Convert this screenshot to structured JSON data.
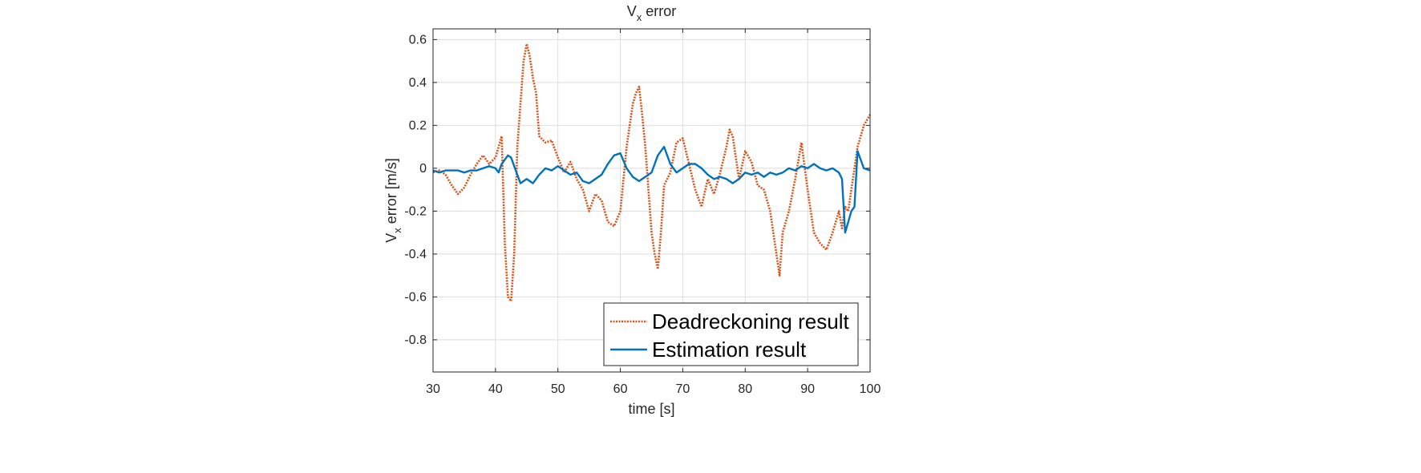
{
  "chart_data": {
    "type": "line",
    "title": {
      "main": "V",
      "sub": "x",
      "rest": " error"
    },
    "xlabel": "time [s]",
    "ylabel": {
      "main": "V",
      "sub": "x",
      "rest": " error [m/s]"
    },
    "xlim": [
      30,
      100
    ],
    "ylim": [
      -0.95,
      0.65
    ],
    "xticks": [
      30,
      40,
      50,
      60,
      70,
      80,
      90,
      100
    ],
    "xtick_labels": [
      "30",
      "40",
      "50",
      "60",
      "70",
      "80",
      "90",
      "100"
    ],
    "yticks": [
      -0.8,
      -0.6,
      -0.4,
      -0.2,
      0,
      0.2,
      0.4,
      0.6
    ],
    "ytick_labels": [
      "-0.8",
      "-0.6",
      "-0.4",
      "-0.2",
      "0",
      "0.2",
      "0.4",
      "0.6"
    ],
    "grid": true,
    "legend_position": "bottom-right",
    "series": [
      {
        "name": "Deadreckoning result",
        "color": "#D95319",
        "style": "dotted",
        "x": [
          30,
          31,
          32,
          33,
          34,
          35,
          36,
          37,
          38,
          39,
          40,
          41,
          41.5,
          42,
          42.5,
          43,
          43.5,
          44,
          44.5,
          45,
          45.5,
          46,
          46.5,
          47,
          48,
          49,
          50,
          51,
          52,
          53,
          54,
          55,
          56,
          57,
          58,
          59,
          60,
          61,
          62,
          62.5,
          63,
          63.5,
          64,
          65,
          65.5,
          66,
          66.5,
          67,
          68,
          69,
          70,
          71,
          72,
          73,
          74,
          75,
          76,
          77,
          77.5,
          78,
          78.5,
          79,
          80,
          81,
          82,
          83,
          84,
          85,
          85.5,
          86,
          87,
          88,
          89,
          90,
          91,
          92,
          93,
          94,
          95,
          95.5,
          96,
          96.5,
          97,
          98,
          99,
          100
        ],
        "y": [
          -0.02,
          -0.01,
          -0.03,
          -0.08,
          -0.12,
          -0.09,
          -0.03,
          0.02,
          0.06,
          0.02,
          0.05,
          0.15,
          -0.35,
          -0.6,
          -0.62,
          -0.4,
          0.1,
          0.3,
          0.5,
          0.58,
          0.52,
          0.42,
          0.35,
          0.15,
          0.12,
          0.13,
          0.05,
          -0.02,
          0.03,
          -0.05,
          -0.1,
          -0.2,
          -0.12,
          -0.15,
          -0.25,
          -0.27,
          -0.2,
          0.1,
          0.3,
          0.35,
          0.38,
          0.25,
          0.1,
          -0.3,
          -0.4,
          -0.47,
          -0.3,
          -0.08,
          -0.02,
          0.12,
          0.14,
          0.02,
          -0.1,
          -0.18,
          -0.05,
          -0.12,
          -0.02,
          0.1,
          0.18,
          0.15,
          0.05,
          -0.05,
          0.08,
          0.03,
          -0.08,
          -0.1,
          -0.2,
          -0.4,
          -0.5,
          -0.3,
          -0.2,
          -0.05,
          0.12,
          -0.1,
          -0.3,
          -0.35,
          -0.38,
          -0.3,
          -0.2,
          -0.28,
          -0.18,
          -0.2,
          -0.1,
          0.1,
          0.2,
          0.25
        ]
      },
      {
        "name": "Estimation result",
        "color": "#0072BD",
        "style": "solid",
        "x": [
          30,
          31,
          32,
          33,
          34,
          35,
          36,
          37,
          38,
          39,
          40,
          40.5,
          41,
          41.5,
          42,
          42.5,
          43,
          44,
          45,
          46,
          47,
          48,
          49,
          50,
          51,
          52,
          53,
          54,
          55,
          56,
          57,
          58,
          59,
          60,
          61,
          62,
          63,
          64,
          65,
          66,
          67,
          68,
          69,
          70,
          71,
          72,
          73,
          74,
          75,
          76,
          77,
          78,
          79,
          80,
          81,
          82,
          83,
          84,
          85,
          86,
          87,
          88,
          89,
          90,
          91,
          92,
          93,
          94,
          95,
          95.5,
          96,
          96.5,
          97,
          97.5,
          98,
          99,
          100
        ],
        "y": [
          -0.01,
          -0.02,
          -0.01,
          -0.01,
          -0.01,
          -0.02,
          -0.01,
          -0.01,
          0.0,
          0.01,
          0.0,
          -0.02,
          0.02,
          0.04,
          0.06,
          0.05,
          0.01,
          -0.07,
          -0.05,
          -0.07,
          -0.03,
          0.0,
          -0.01,
          0.01,
          -0.01,
          -0.03,
          -0.02,
          -0.06,
          -0.07,
          -0.05,
          -0.03,
          0.02,
          0.06,
          0.07,
          0.0,
          -0.04,
          -0.06,
          -0.04,
          -0.02,
          0.06,
          0.1,
          0.02,
          -0.02,
          0.0,
          0.02,
          0.02,
          0.0,
          -0.03,
          -0.05,
          -0.04,
          -0.05,
          -0.07,
          -0.05,
          -0.02,
          -0.03,
          -0.02,
          -0.04,
          -0.02,
          -0.03,
          -0.02,
          0.0,
          -0.01,
          0.01,
          0.0,
          0.02,
          0.0,
          -0.01,
          0.0,
          -0.02,
          -0.05,
          -0.3,
          -0.25,
          -0.2,
          -0.18,
          0.08,
          0.0,
          -0.01
        ]
      }
    ]
  }
}
